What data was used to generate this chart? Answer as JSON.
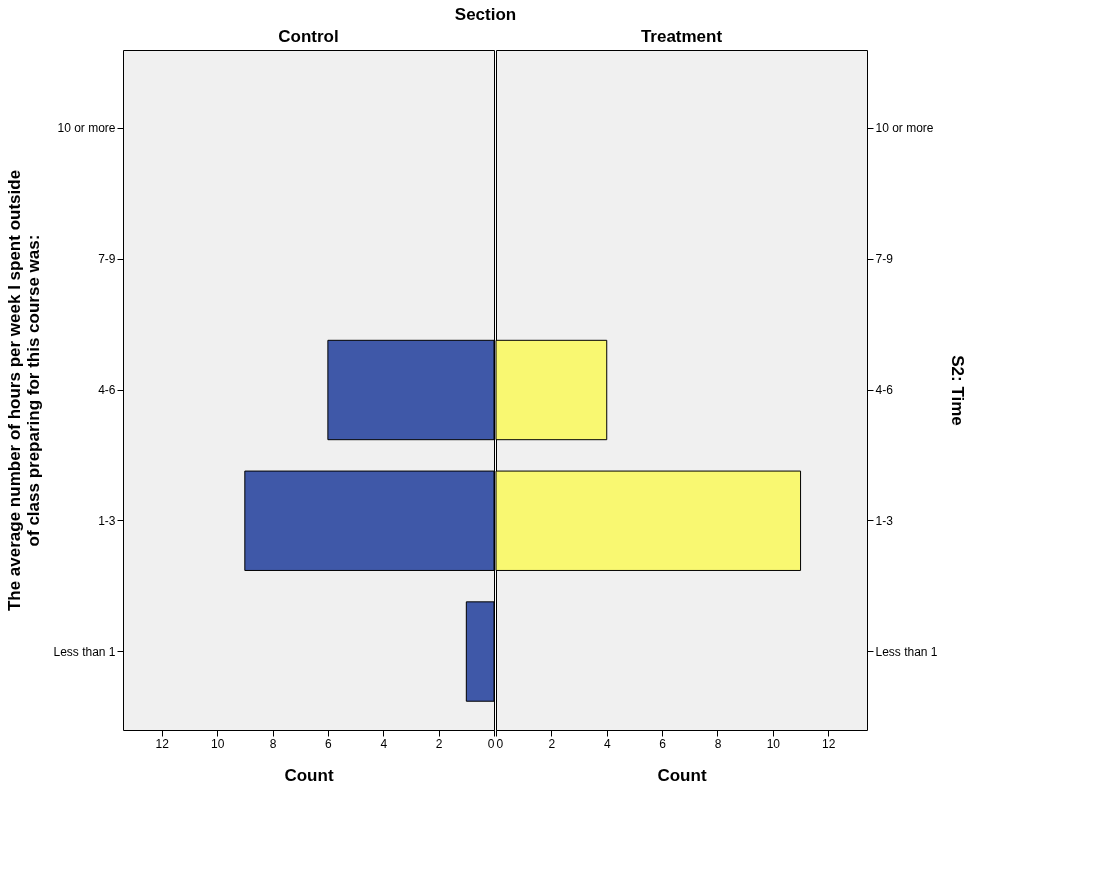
{
  "chart_data": [
    {
      "type": "bar",
      "title": "Section",
      "subtitle": "Control",
      "orientation": "horizontal",
      "categories": [
        "10 or more",
        "7-9",
        "4-6",
        "1-3",
        "Less than 1"
      ],
      "series": [
        {
          "color": "#3f58a8",
          "values": [
            0,
            0,
            6,
            9,
            1
          ]
        }
      ],
      "xlim": [
        13.4,
        0
      ],
      "xticks": [
        12,
        10,
        8,
        6,
        4,
        2,
        0
      ],
      "xlabel": "Count",
      "ylabel": "The average number of hours per week I spent outside of class preparing for this course was:"
    },
    {
      "type": "bar",
      "subtitle": "Treatment",
      "orientation": "horizontal",
      "categories": [
        "10 or more",
        "7-9",
        "4-6",
        "1-3",
        "Less than 1"
      ],
      "series": [
        {
          "color": "#f9f871",
          "values": [
            0,
            0,
            4,
            11,
            0
          ]
        }
      ],
      "xlim": [
        0,
        13.4
      ],
      "xticks": [
        0,
        2,
        4,
        6,
        8,
        10,
        12
      ],
      "xlabel": "Count",
      "y2label": "S2: Time"
    }
  ]
}
